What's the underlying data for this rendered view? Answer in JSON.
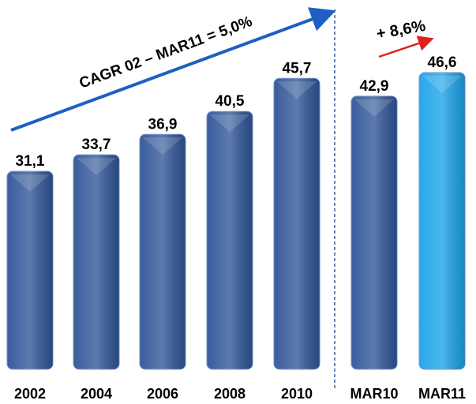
{
  "chart_data": {
    "type": "bar",
    "categories": [
      "2002",
      "2004",
      "2006",
      "2008",
      "2010",
      "MAR10",
      "MAR11"
    ],
    "values": [
      31.1,
      33.7,
      36.9,
      40.5,
      45.7,
      42.9,
      46.6
    ],
    "value_labels": [
      "31,1",
      "33,7",
      "36,9",
      "40,5",
      "45,7",
      "42,9",
      "46,6"
    ],
    "colors": [
      "#2f5597",
      "#2f5597",
      "#2f5597",
      "#2f5597",
      "#2f5597",
      "#2f5597",
      "#1aa3e8"
    ],
    "annotations": [
      "CAGR 02 – MAR11 = 5,0%",
      "+ 8,6%"
    ]
  }
}
